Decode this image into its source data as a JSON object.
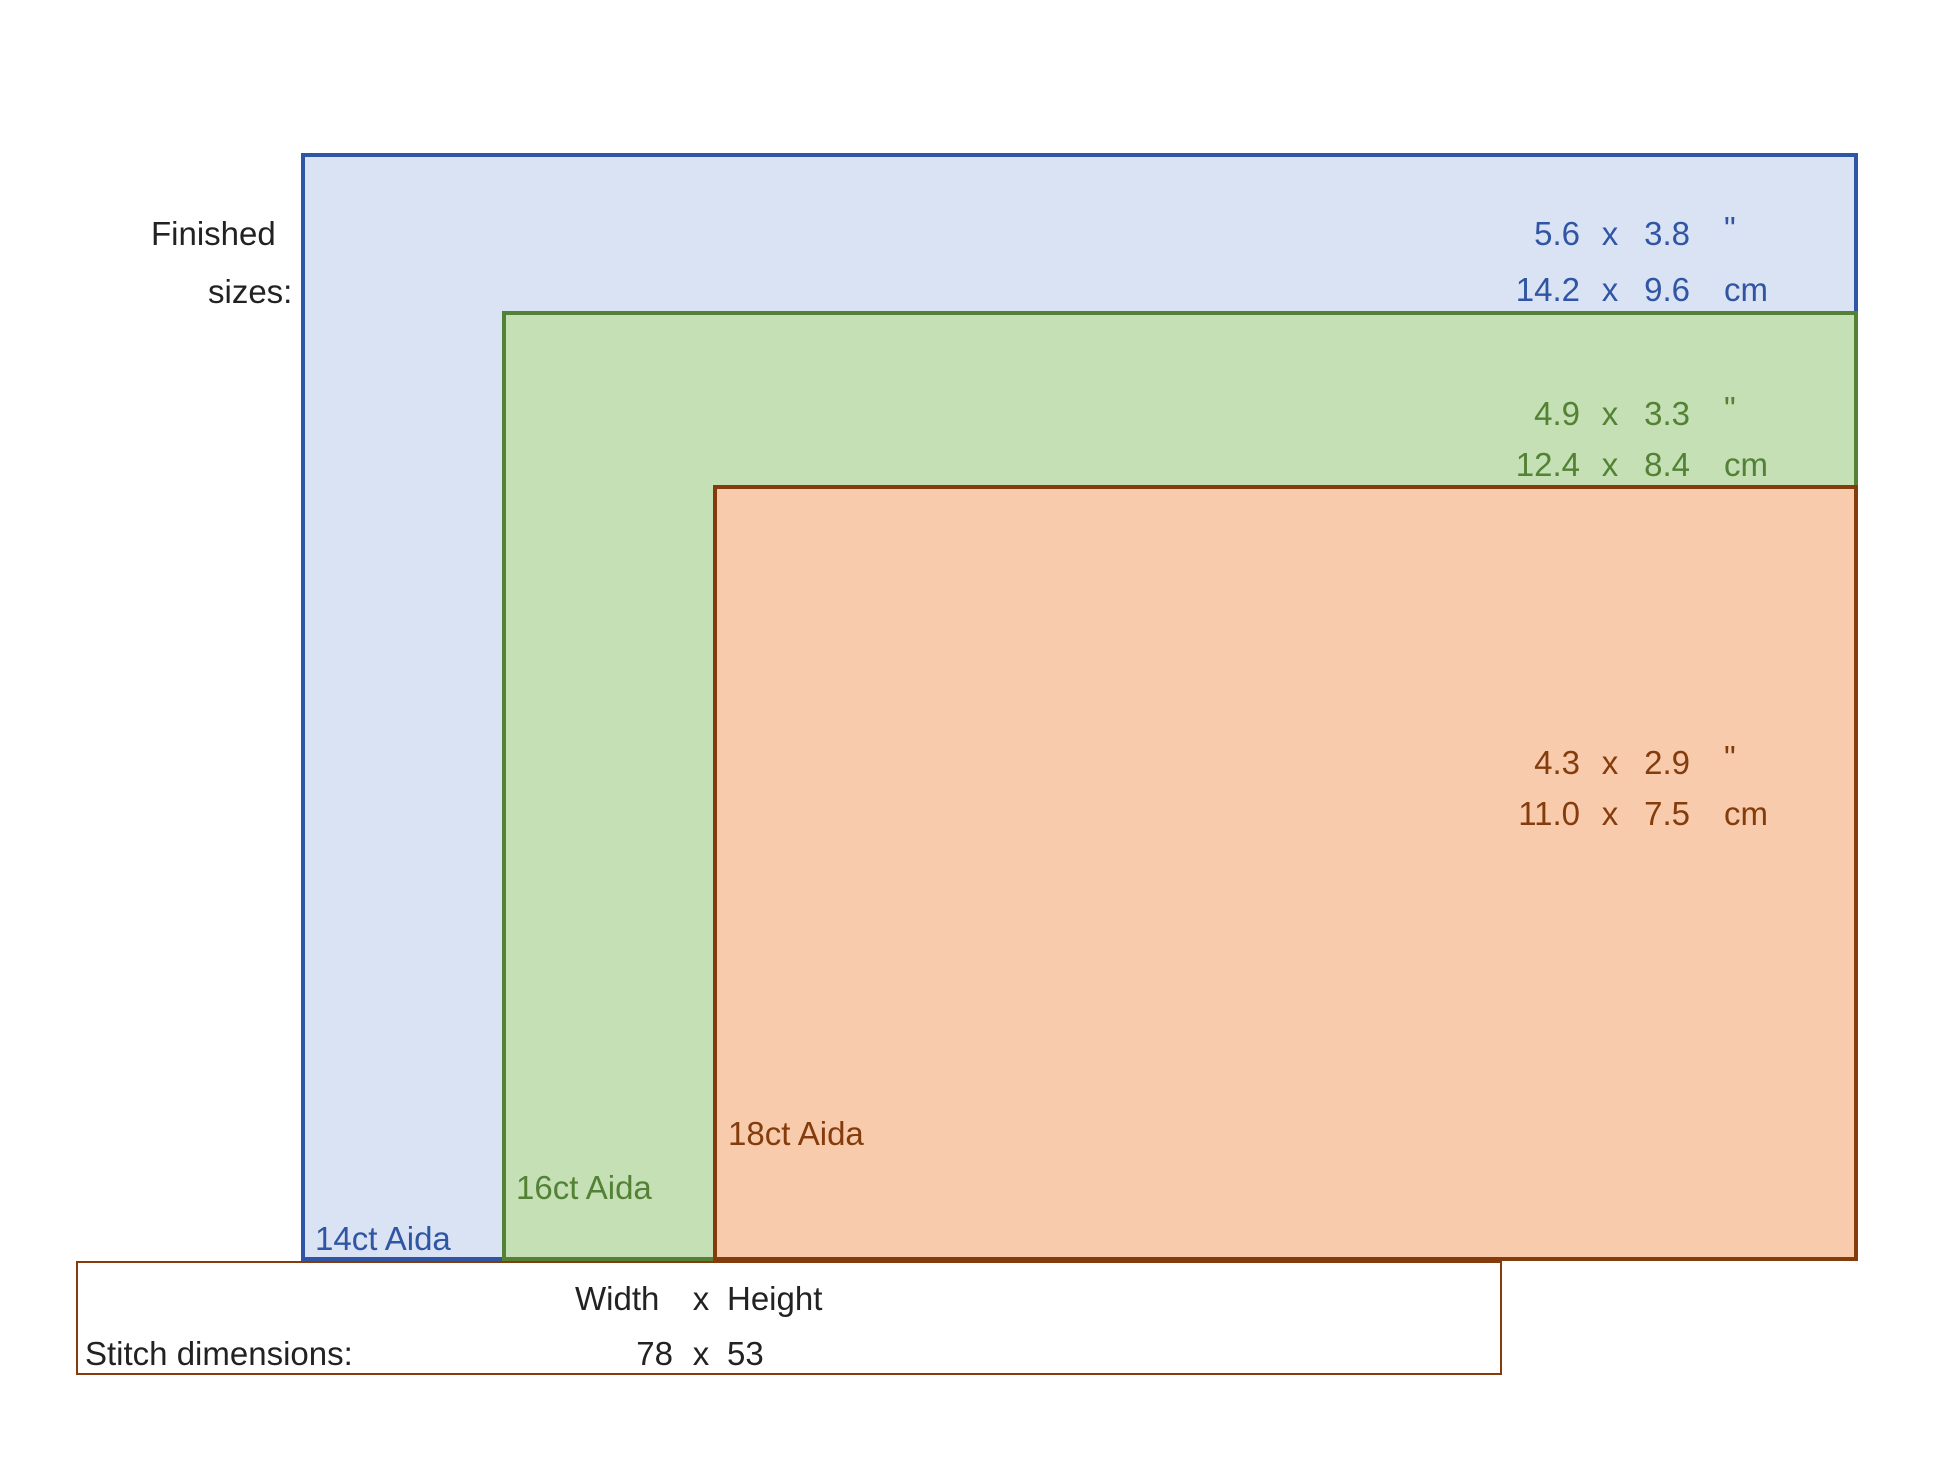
{
  "finished_label_line1": "Finished",
  "finished_label_line2": "sizes:",
  "fabrics": [
    {
      "label": "14ct Aida",
      "color": "#2f55a4",
      "fill": "#dae3f3",
      "inches": {
        "w": "5.6",
        "x": "x",
        "h": "3.8",
        "unit": "\""
      },
      "cm": {
        "w": "14.2",
        "x": "x",
        "h": "9.6",
        "unit": "cm"
      }
    },
    {
      "label": "16ct Aida",
      "color": "#538135",
      "fill": "#c5e0b4",
      "inches": {
        "w": "4.9",
        "x": "x",
        "h": "3.3",
        "unit": "\""
      },
      "cm": {
        "w": "12.4",
        "x": "x",
        "h": "8.4",
        "unit": "cm"
      }
    },
    {
      "label": "18ct Aida",
      "color": "#843c0c",
      "fill": "#f8cbad",
      "inches": {
        "w": "4.3",
        "x": "x",
        "h": "2.9",
        "unit": "\""
      },
      "cm": {
        "w": "11.0",
        "x": "x",
        "h": "7.5",
        "unit": "cm"
      }
    }
  ],
  "stitch": {
    "header_width": "Width",
    "header_x": "x",
    "header_height": "Height",
    "label": "Stitch dimensions:",
    "width": "78",
    "x": "x",
    "height": "53"
  }
}
